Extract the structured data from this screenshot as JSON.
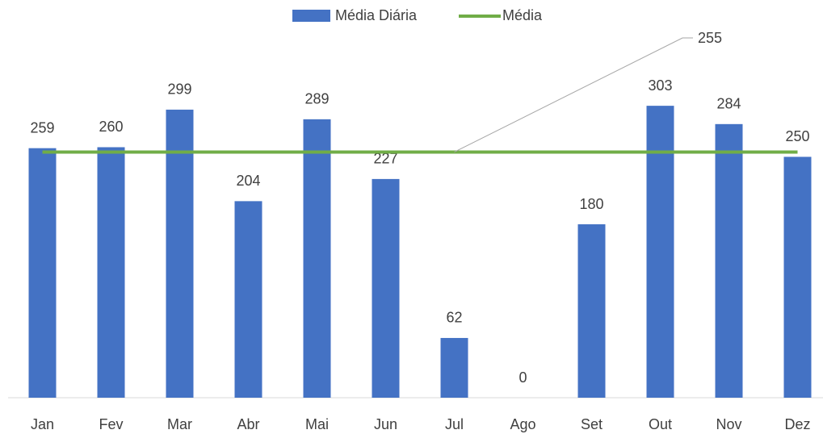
{
  "chart_data": {
    "type": "bar",
    "categories": [
      "Jan",
      "Fev",
      "Mar",
      "Abr",
      "Mai",
      "Jun",
      "Jul",
      "Ago",
      "Set",
      "Out",
      "Nov",
      "Dez"
    ],
    "series": [
      {
        "name": "Média Diária",
        "type": "bar",
        "color": "#4472c4",
        "values": [
          259,
          260,
          299,
          204,
          289,
          227,
          62,
          0,
          180,
          303,
          284,
          250
        ]
      },
      {
        "name": "Média",
        "type": "line",
        "color": "#70ad47",
        "values": [
          255,
          255,
          255,
          255,
          255,
          255,
          255,
          255,
          255,
          255,
          255,
          255
        ]
      }
    ],
    "ylim": [
      0,
      350
    ]
  }
}
